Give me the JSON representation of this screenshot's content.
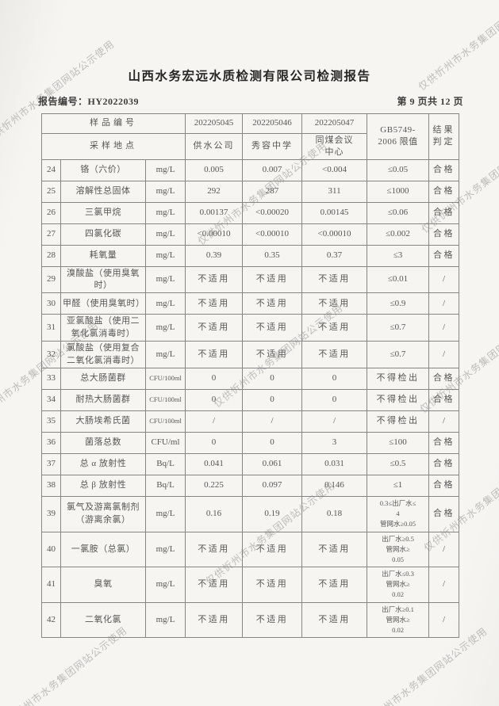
{
  "header": {
    "title": "山西水务宏远水质检测有限公司检测报告",
    "report_no": "报告编号：HY2022039",
    "page_indicator": "第 9 页共 12 页"
  },
  "watermark": {
    "text": "仅供忻州市水务集团网站公示使用"
  },
  "table": {
    "sample_id_label": "样品编号",
    "location_label": "采样地点",
    "sample_ids": [
      "202205045",
      "202205046",
      "202205047"
    ],
    "locations": [
      "供水公司",
      "秀容中学",
      "同煤会议\n中心"
    ],
    "limit_header": "GB5749-\n2006 限值",
    "result_header": "结果\n判定",
    "rows": [
      {
        "no": "24",
        "param": "铬（六价）",
        "unit": "mg/L",
        "values": [
          "0.005",
          "0.007",
          "<0.004"
        ],
        "limit": "≤0.05",
        "result": "合格"
      },
      {
        "no": "25",
        "param": "溶解性总固体",
        "unit": "mg/L",
        "values": [
          "292",
          "287",
          "311"
        ],
        "limit": "≤1000",
        "result": "合格"
      },
      {
        "no": "26",
        "param": "三氯甲烷",
        "unit": "mg/L",
        "values": [
          "0.00137",
          "<0.00020",
          "0.00145"
        ],
        "limit": "≤0.06",
        "result": "合格"
      },
      {
        "no": "27",
        "param": "四氯化碳",
        "unit": "mg/L",
        "values": [
          "<0.00010",
          "<0.00010",
          "<0.00010"
        ],
        "limit": "≤0.002",
        "result": "合格"
      },
      {
        "no": "28",
        "param": "耗氧量",
        "unit": "mg/L",
        "values": [
          "0.39",
          "0.35",
          "0.37"
        ],
        "limit": "≤3",
        "result": "合格"
      },
      {
        "no": "29",
        "param": "溴酸盐（使用臭氧时）",
        "unit": "mg/L",
        "values": [
          "不适用",
          "不适用",
          "不适用"
        ],
        "limit": "≤0.01",
        "result": "/"
      },
      {
        "no": "30",
        "param": "甲醛（使用臭氧时）",
        "unit": "mg/L",
        "values": [
          "不适用",
          "不适用",
          "不适用"
        ],
        "limit": "≤0.9",
        "result": "/"
      },
      {
        "no": "31",
        "param": "亚氯酸盐（使用二氧化氯消毒时）",
        "unit": "mg/L",
        "values": [
          "不适用",
          "不适用",
          "不适用"
        ],
        "limit": "≤0.7",
        "result": "/"
      },
      {
        "no": "32",
        "param": "氯酸盐（使用复合二氧化氯消毒时）",
        "unit": "mg/L",
        "values": [
          "不适用",
          "不适用",
          "不适用"
        ],
        "limit": "≤0.7",
        "result": "/"
      },
      {
        "no": "33",
        "param": "总大肠菌群",
        "unit": "CFU/100ml",
        "values": [
          "0",
          "0",
          "0"
        ],
        "limit": "不得检出",
        "result": "合格"
      },
      {
        "no": "34",
        "param": "耐热大肠菌群",
        "unit": "CFU/100ml",
        "values": [
          "0",
          "0",
          "0"
        ],
        "limit": "不得检出",
        "result": "合格"
      },
      {
        "no": "35",
        "param": "大肠埃希氏菌",
        "unit": "CFU/100ml",
        "values": [
          "/",
          "/",
          "/"
        ],
        "limit": "不得检出",
        "result": "/"
      },
      {
        "no": "36",
        "param": "菌落总数",
        "unit": "CFU/ml",
        "values": [
          "0",
          "0",
          "3"
        ],
        "limit": "≤100",
        "result": "合格"
      },
      {
        "no": "37",
        "param": "总 α 放射性",
        "unit": "Bq/L",
        "values": [
          "0.041",
          "0.061",
          "0.031"
        ],
        "limit": "≤0.5",
        "result": "合格"
      },
      {
        "no": "38",
        "param": "总 β 放射性",
        "unit": "Bq/L",
        "values": [
          "0.225",
          "0.097",
          "0.146"
        ],
        "limit": "≤1",
        "result": "合格"
      },
      {
        "no": "39",
        "param": "氯气及游离氯制剂（游离余氯）",
        "unit": "mg/L",
        "values": [
          "0.16",
          "0.19",
          "0.18"
        ],
        "limit": "0.3≤出厂水≤\n4\n管网水≥0.05",
        "result": "合格"
      },
      {
        "no": "40",
        "param": "一氯胺（总氯）",
        "unit": "mg/L",
        "values": [
          "不适用",
          "不适用",
          "不适用"
        ],
        "limit": "出厂水≥0.5\n管网水≥\n0.05",
        "result": "/"
      },
      {
        "no": "41",
        "param": "臭氧",
        "unit": "mg/L",
        "values": [
          "不适用",
          "不适用",
          "不适用"
        ],
        "limit": "出厂水≤0.3\n管网水≥\n0.02",
        "result": "/"
      },
      {
        "no": "42",
        "param": "二氧化氯",
        "unit": "mg/L",
        "values": [
          "不适用",
          "不适用",
          "不适用"
        ],
        "limit": "出厂水≥0.1\n管网水≥\n0.02",
        "result": "/"
      }
    ]
  },
  "colors": {
    "paper": "#f6f5f2",
    "table_border": "#858585",
    "text": "#565656",
    "title_text": "#262626",
    "watermark": "#808080"
  }
}
